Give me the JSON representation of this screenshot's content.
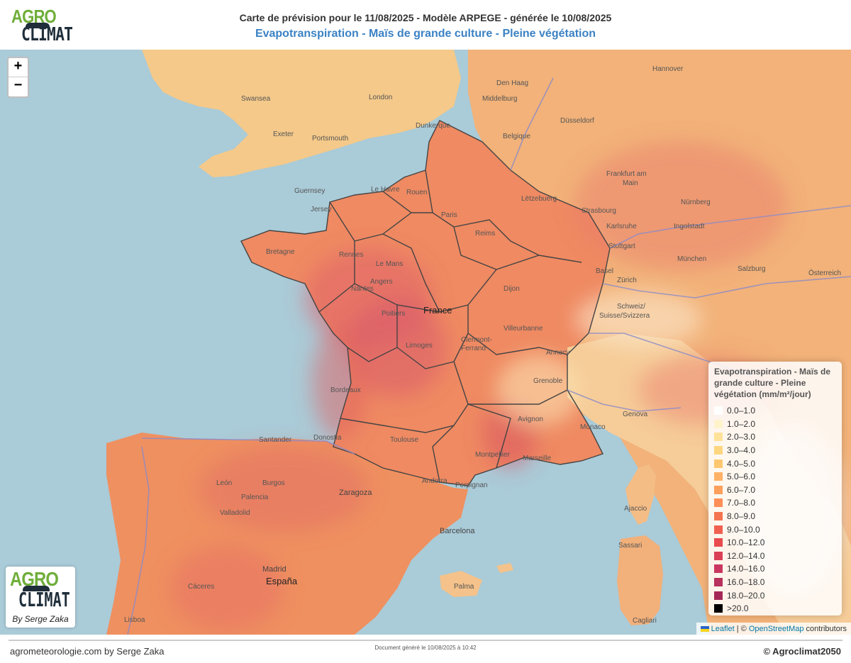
{
  "header": {
    "title_line1": "Carte de prévision pour le 11/08/2025 - Modèle ARPEGE - générée le 10/08/2025",
    "title_line2": "Evapotranspiration - Maïs de grande culture - Pleine végétation"
  },
  "logo": {
    "agro": "AGRO",
    "climat": "CLIMAT"
  },
  "zoom": {
    "in": "+",
    "out": "−"
  },
  "map_labels": {
    "cities": [
      "London",
      "Swansea",
      "Exeter",
      "Portsmouth",
      "Dunkerque",
      "Rouen",
      "Paris",
      "Le Havre",
      "Guernsey",
      "Jersey",
      "Rennes",
      "Le Mans",
      "Poitiers",
      "Limoges",
      "Bordeaux",
      "Toulouse",
      "Montpellier",
      "Marseille",
      "Avignon",
      "Grenoble",
      "Annecy",
      "Villeurbanne",
      "Clermont-Ferrand",
      "Genova",
      "Monaco",
      "Ajaccio",
      "Sassari",
      "Cagliari",
      "Barcelona",
      "Zaragoza",
      "Madrid",
      "Valladolid",
      "Burgos",
      "León",
      "Palencia",
      "Santander",
      "Donostia",
      "Perpignan",
      "Andorra",
      "Lisboa",
      "Cáceres",
      "Palma",
      "Düsseldorf",
      "Frankfurt am Main",
      "Stuttgart",
      "Strasbourg",
      "Nürnberg",
      "Ingolstadt",
      "München",
      "Salzburg",
      "Zürich",
      "Hannover",
      "Middelburg",
      "Den Haag",
      "Basel",
      "Dijon",
      "Reims",
      "Nantes",
      "Angers",
      "France",
      "España",
      "Bretagne",
      "Belgique",
      "Schweiz / Suisse / Svizzera",
      "Österreich",
      "Lëtzebuerg"
    ]
  },
  "legend": {
    "title": "Evapotranspiration - Maïs de grande culture - Pleine végétation (mm/m²/jour)",
    "items": [
      {
        "label": "0.0–1.0",
        "color": "#ffffff"
      },
      {
        "label": "1.0–2.0",
        "color": "#fff3cc"
      },
      {
        "label": "2.0–3.0",
        "color": "#ffe29a"
      },
      {
        "label": "3.0–4.0",
        "color": "#ffd680"
      },
      {
        "label": "4.0–5.0",
        "color": "#ffc870"
      },
      {
        "label": "5.0–6.0",
        "color": "#ffb166"
      },
      {
        "label": "6.0–7.0",
        "color": "#ff9f5c"
      },
      {
        "label": "7.0–8.0",
        "color": "#ff8e57"
      },
      {
        "label": "8.0–9.0",
        "color": "#f47452"
      },
      {
        "label": "9.0–10.0",
        "color": "#f06050"
      },
      {
        "label": "10.0–12.0",
        "color": "#e84a4e"
      },
      {
        "label": "12.0–14.0",
        "color": "#d93f55"
      },
      {
        "label": "14.0–16.0",
        "color": "#c93660"
      },
      {
        "label": "16.0–18.0",
        "color": "#b8305c"
      },
      {
        "label": "18.0–20.0",
        "color": "#a42857"
      },
      {
        "label": ">20.0",
        "color": "#000000"
      }
    ]
  },
  "corner_logo": {
    "agro": "AGRO",
    "climat": "CLIMAT",
    "by": "By Serge Zaka"
  },
  "attribution": {
    "leaflet": "Leaflet",
    "sep": " | © ",
    "osm": "OpenStreetMap",
    "rest": " contributors"
  },
  "footer": {
    "left": "agrometeorologie.com by Serge Zaka",
    "middle": "Document généré le 10/08/2025 à 10:42",
    "right": "© Agroclimat2050"
  }
}
